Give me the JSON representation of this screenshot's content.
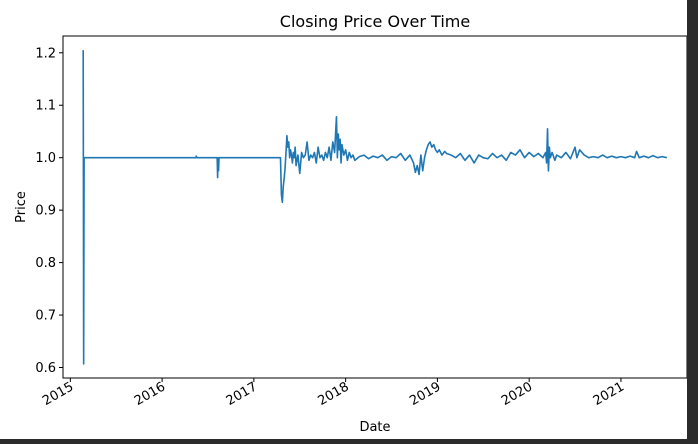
{
  "chart_data": {
    "type": "line",
    "title": "Closing Price Over Time",
    "xlabel": "Date",
    "ylabel": "Price",
    "xlim": [
      2014.92,
      2021.72
    ],
    "ylim": [
      0.58,
      1.232
    ],
    "xticks": [
      2015,
      2016,
      2017,
      2018,
      2019,
      2020,
      2021
    ],
    "xtick_labels": [
      "2015",
      "2016",
      "2017",
      "2018",
      "2019",
      "2020",
      "2021"
    ],
    "yticks": [
      0.6,
      0.7,
      0.8,
      0.9,
      1.0,
      1.1,
      1.2
    ],
    "ytick_labels": [
      "0.6",
      "0.7",
      "0.8",
      "0.9",
      "1.0",
      "1.1",
      "1.2"
    ],
    "grid": false,
    "line_color": "#1f77b4",
    "series": [
      {
        "x": [
          2015.14,
          2015.142,
          2015.145,
          2015.15,
          2015.155,
          2015.16,
          2015.165,
          2015.17,
          2015.18,
          2015.2,
          2015.3,
          2015.5,
          2015.8,
          2016.0,
          2016.3,
          2016.37,
          2016.372,
          2016.38,
          2016.6,
          2016.605,
          2016.607,
          2016.615,
          2016.62,
          2016.8,
          2017.0,
          2017.2,
          2017.29,
          2017.3,
          2017.31,
          2017.32,
          2017.33,
          2017.34,
          2017.35,
          2017.36,
          2017.37,
          2017.38,
          2017.39,
          2017.4,
          2017.41,
          2017.42,
          2017.43,
          2017.44,
          2017.45,
          2017.46,
          2017.48,
          2017.5,
          2017.52,
          2017.54,
          2017.56,
          2017.58,
          2017.6,
          2017.62,
          2017.64,
          2017.66,
          2017.68,
          2017.7,
          2017.72,
          2017.74,
          2017.76,
          2017.78,
          2017.8,
          2017.82,
          2017.84,
          2017.86,
          2017.88,
          2017.9,
          2017.91,
          2017.92,
          2017.93,
          2017.94,
          2017.95,
          2017.96,
          2017.98,
          2018.0,
          2018.02,
          2018.04,
          2018.06,
          2018.08,
          2018.1,
          2018.15,
          2018.2,
          2018.25,
          2018.3,
          2018.35,
          2018.4,
          2018.45,
          2018.5,
          2018.55,
          2018.6,
          2018.65,
          2018.7,
          2018.74,
          2018.76,
          2018.78,
          2018.8,
          2018.82,
          2018.84,
          2018.86,
          2018.88,
          2018.9,
          2018.92,
          2018.94,
          2018.96,
          2018.98,
          2019.0,
          2019.02,
          2019.05,
          2019.08,
          2019.1,
          2019.15,
          2019.2,
          2019.25,
          2019.3,
          2019.35,
          2019.4,
          2019.45,
          2019.5,
          2019.55,
          2019.6,
          2019.65,
          2019.7,
          2019.75,
          2019.8,
          2019.85,
          2019.9,
          2019.95,
          2020.0,
          2020.05,
          2020.1,
          2020.15,
          2020.18,
          2020.19,
          2020.2,
          2020.21,
          2020.22,
          2020.23,
          2020.25,
          2020.28,
          2020.3,
          2020.35,
          2020.4,
          2020.45,
          2020.5,
          2020.52,
          2020.55,
          2020.6,
          2020.65,
          2020.7,
          2020.75,
          2020.8,
          2020.85,
          2020.9,
          2020.95,
          2021.0,
          2021.05,
          2021.1,
          2021.15,
          2021.17,
          2021.2,
          2021.25,
          2021.3,
          2021.35,
          2021.4,
          2021.45,
          2021.5
        ],
        "y": [
          1.205,
          1.0,
          0.607,
          1.0,
          1.0,
          1.0,
          1.0,
          1.0,
          1.0,
          1.0,
          1.0,
          1.0,
          1.0,
          1.0,
          1.0,
          1.0,
          1.003,
          1.0,
          1.0,
          0.962,
          1.0,
          0.975,
          1.0,
          1.0,
          1.0,
          1.0,
          1.0,
          0.93,
          0.915,
          0.945,
          0.96,
          0.98,
          1.01,
          1.042,
          1.02,
          1.03,
          1.0,
          1.015,
          1.005,
          0.99,
          1.01,
          1.0,
          1.02,
          0.985,
          1.005,
          0.97,
          1.01,
          1.0,
          1.005,
          1.03,
          0.995,
          1.005,
          1.0,
          1.01,
          0.99,
          1.02,
          1.0,
          1.005,
          0.995,
          1.01,
          1.0,
          1.02,
          0.995,
          1.03,
          1.01,
          1.078,
          1.0,
          1.045,
          1.015,
          1.035,
          0.99,
          1.025,
          1.005,
          1.015,
          0.995,
          1.01,
          1.0,
          1.005,
          0.995,
          1.002,
          1.005,
          0.998,
          1.003,
          1.0,
          1.005,
          0.995,
          1.002,
          1.0,
          1.008,
          0.995,
          1.005,
          0.99,
          0.972,
          0.985,
          0.968,
          1.005,
          0.975,
          1.0,
          1.015,
          1.025,
          1.03,
          1.02,
          1.025,
          1.015,
          1.01,
          1.015,
          1.005,
          1.012,
          1.008,
          1.005,
          1.0,
          1.008,
          0.995,
          1.005,
          0.99,
          1.005,
          1.0,
          0.998,
          1.008,
          1.0,
          1.005,
          0.995,
          1.01,
          1.005,
          1.015,
          1.0,
          1.01,
          1.002,
          1.008,
          1.0,
          1.01,
          0.99,
          1.055,
          0.975,
          1.02,
          1.0,
          1.01,
          0.995,
          1.005,
          1.0,
          1.01,
          0.998,
          1.02,
          1.0,
          1.015,
          1.005,
          1.0,
          1.002,
          1.0,
          1.005,
          1.0,
          1.003,
          1.0,
          1.002,
          1.0,
          1.003,
          1.0,
          1.012,
          1.0,
          1.003,
          1.0,
          1.004,
          1.0,
          1.002,
          1.0
        ]
      }
    ]
  }
}
